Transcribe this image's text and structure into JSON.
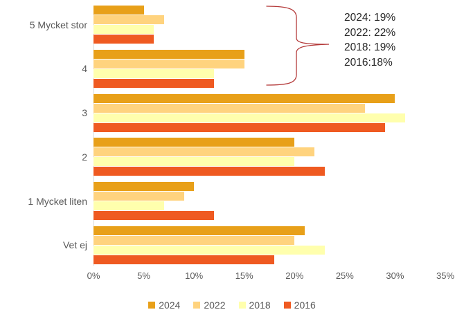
{
  "chart_data": {
    "type": "bar",
    "orientation": "horizontal",
    "title": "",
    "categories": [
      "5 Mycket stor",
      "4",
      "3",
      "2",
      "1 Mycket liten",
      "Vet ej"
    ],
    "series": [
      {
        "name": "2024",
        "color": "#E8A019",
        "values": [
          5,
          15,
          30,
          20,
          10,
          21
        ]
      },
      {
        "name": "2022",
        "color": "#FFD37E",
        "values": [
          7,
          15,
          27,
          22,
          9,
          20
        ]
      },
      {
        "name": "2018",
        "color": "#FFFFAD",
        "values": [
          6,
          12,
          31,
          20,
          7,
          23
        ]
      },
      {
        "name": "2016",
        "color": "#EF5A21",
        "values": [
          6,
          12,
          29,
          23,
          12,
          18
        ]
      }
    ],
    "x_axis": {
      "min": 0,
      "max": 35,
      "tick_step": 5,
      "tick_labels": [
        "0%",
        "5%",
        "10%",
        "15%",
        "20%",
        "25%",
        "30%",
        "35%"
      ]
    },
    "grid": false,
    "legend_position": "bottom"
  },
  "annotation": {
    "brace_color": "#b43a3a",
    "lines": [
      "2024: 19%",
      "2022: 22%",
      "2018: 19%",
      "2016:18%"
    ]
  },
  "colors": {
    "axis_text": "#595959",
    "axis_line": "#d9d9d9",
    "annotation_text": "#262626"
  }
}
